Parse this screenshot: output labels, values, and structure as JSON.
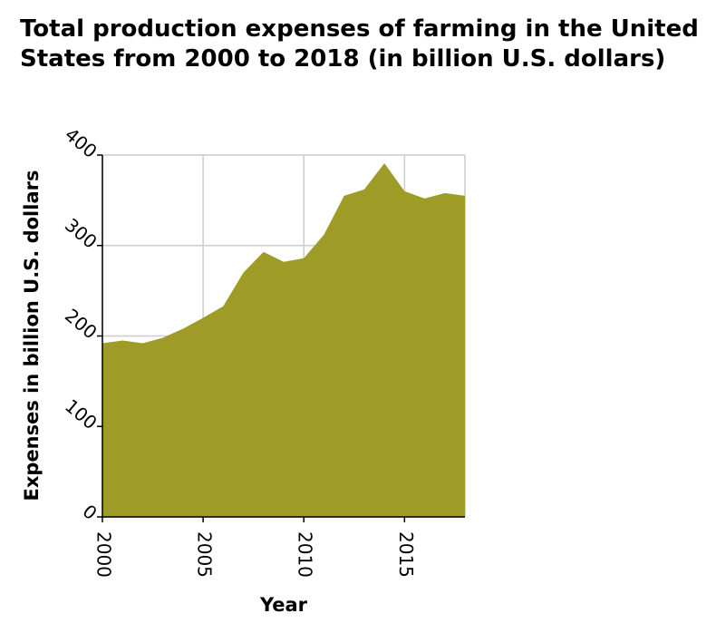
{
  "chart_data": {
    "type": "area",
    "title": "Total production expenses of farming in the United States from 2000 to 2018 (in billion U.S. dollars)",
    "xlabel": "Year",
    "ylabel": "Expenses in billion U.S. dollars",
    "x": [
      2000,
      2001,
      2002,
      2003,
      2004,
      2005,
      2006,
      2007,
      2008,
      2009,
      2010,
      2011,
      2012,
      2013,
      2014,
      2015,
      2016,
      2017,
      2018
    ],
    "series": [
      {
        "values": [
          192,
          195,
          192,
          198,
          208,
          220,
          233,
          270,
          293,
          282,
          286,
          312,
          355,
          362,
          391,
          360,
          352,
          358,
          355
        ]
      }
    ],
    "xlim": [
      2000,
      2018
    ],
    "ylim": [
      0,
      400
    ],
    "xticks": [
      2000,
      2005,
      2010,
      2015
    ],
    "yticks": [
      0,
      100,
      200,
      300,
      400
    ],
    "grid": true,
    "legend": "none",
    "colors": {
      "fill": "#9e9c27",
      "grid": "#cccccc",
      "axis": "#000000"
    }
  }
}
